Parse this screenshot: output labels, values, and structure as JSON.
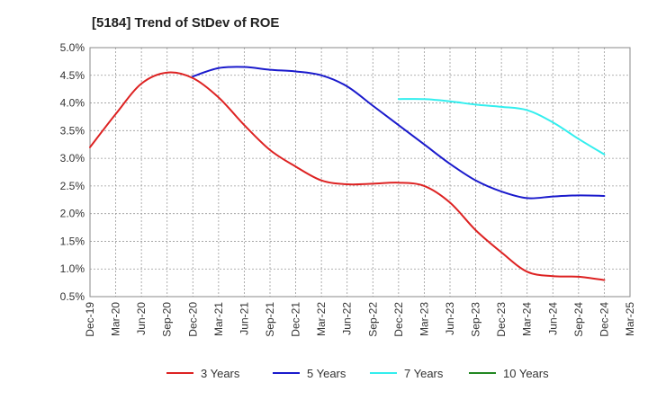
{
  "chart_data": {
    "type": "line",
    "title": "[5184]  Trend of StDev of ROE",
    "xlabel": "",
    "ylabel": "",
    "x_ticks": [
      "Dec-19",
      "Mar-20",
      "Jun-20",
      "Sep-20",
      "Dec-20",
      "Mar-21",
      "Jun-21",
      "Sep-21",
      "Dec-21",
      "Mar-22",
      "Jun-22",
      "Sep-22",
      "Dec-22",
      "Mar-23",
      "Jun-23",
      "Sep-23",
      "Dec-23",
      "Mar-24",
      "Jun-24",
      "Sep-24",
      "Dec-24",
      "Mar-25"
    ],
    "y_ticks": [
      "0.5%",
      "1.0%",
      "1.5%",
      "2.0%",
      "2.5%",
      "3.0%",
      "3.5%",
      "4.0%",
      "4.5%",
      "5.0%"
    ],
    "ylim": [
      0.5,
      5.0
    ],
    "grid": true,
    "legend_position": "bottom",
    "series": [
      {
        "name": "3 Years",
        "color": "#dd2222",
        "x": [
          "Dec-19",
          "Mar-20",
          "Jun-20",
          "Sep-20",
          "Dec-20",
          "Mar-21",
          "Jun-21",
          "Sep-21",
          "Dec-21",
          "Mar-22",
          "Jun-22",
          "Sep-22",
          "Dec-22",
          "Mar-23",
          "Jun-23",
          "Sep-23",
          "Dec-23",
          "Mar-24",
          "Jun-24",
          "Sep-24",
          "Dec-24"
        ],
        "values": [
          3.2,
          3.8,
          4.35,
          4.55,
          4.45,
          4.1,
          3.6,
          3.15,
          2.85,
          2.6,
          2.53,
          2.54,
          2.56,
          2.5,
          2.2,
          1.7,
          1.3,
          0.95,
          0.87,
          0.86,
          0.8
        ]
      },
      {
        "name": "5 Years",
        "color": "#1a1acc",
        "x": [
          "Dec-20",
          "Mar-21",
          "Jun-21",
          "Sep-21",
          "Dec-21",
          "Mar-22",
          "Jun-22",
          "Sep-22",
          "Dec-22",
          "Mar-23",
          "Jun-23",
          "Sep-23",
          "Dec-23",
          "Mar-24",
          "Jun-24",
          "Sep-24",
          "Dec-24"
        ],
        "values": [
          4.48,
          4.63,
          4.65,
          4.6,
          4.57,
          4.5,
          4.3,
          3.95,
          3.6,
          3.25,
          2.9,
          2.6,
          2.4,
          2.28,
          2.31,
          2.33,
          2.32
        ]
      },
      {
        "name": "7 Years",
        "color": "#33eeee",
        "x": [
          "Dec-22",
          "Mar-23",
          "Jun-23",
          "Sep-23",
          "Dec-23",
          "Mar-24",
          "Jun-24",
          "Sep-24",
          "Dec-24"
        ],
        "values": [
          4.07,
          4.07,
          4.03,
          3.97,
          3.93,
          3.87,
          3.65,
          3.35,
          3.07
        ]
      },
      {
        "name": "10 Years",
        "color": "#228822",
        "x": [],
        "values": []
      }
    ]
  }
}
